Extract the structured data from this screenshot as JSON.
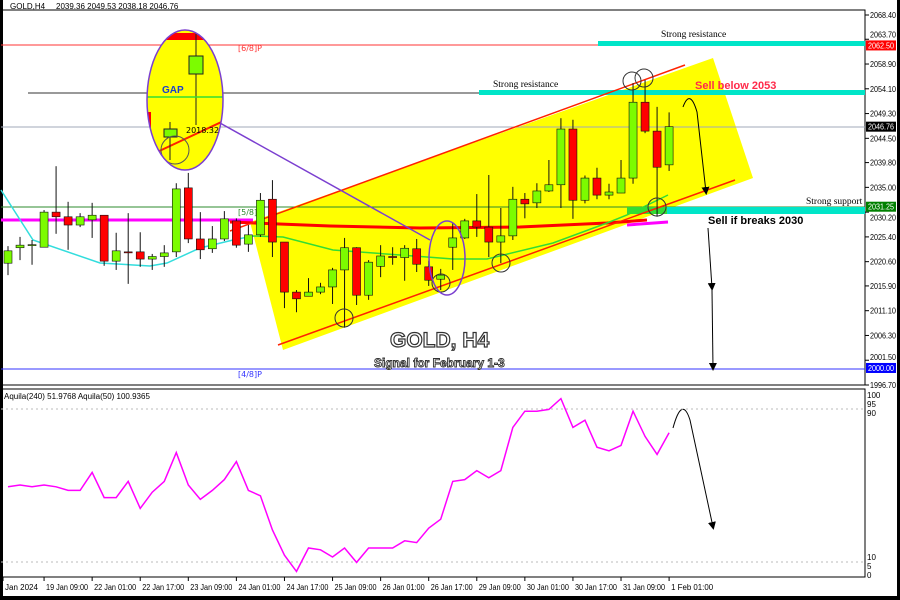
{
  "header": {
    "symbol": "GOLD,H4",
    "ohlc": "2039.36 2049.53 2038.18 2046.76"
  },
  "indicator": {
    "label": "Aquila(240) 51.9768  Aquila(50) 100.9365"
  },
  "annotations": {
    "strong_resistance_top": "Strong resistance",
    "strong_resistance_mid": "Strong resistance",
    "strong_support": "Strong support",
    "sell_below": "Sell below 2053",
    "sell_if_breaks": "Sell if breaks 2030",
    "title": "GOLD, H4",
    "subtitle": "Signal for February 1-3",
    "gap": "GAP",
    "gap_price": "2018.32",
    "level_6_8": "[6/8]P",
    "level_5_8": "[5/8]P",
    "level_4_8": "[4/8]P"
  },
  "colors": {
    "bull": "#7cfc00",
    "bear": "#ff0000",
    "channel": "#ffff00",
    "support_band": "#00e5c8",
    "oscillator": "#ff00ff",
    "sell_text": "#ff2a4a"
  },
  "chart_data": {
    "type": "candlestick",
    "ylim": [
      1996.7,
      2068.4
    ],
    "y_ticks": [
      "2068.40",
      "2063.70",
      "2058.90",
      "2054.10",
      "2049.30",
      "2044.50",
      "2039.80",
      "2035.00",
      "2030.20",
      "2025.40",
      "2020.60",
      "2015.90",
      "2011.10",
      "2006.30",
      "2001.50",
      "1996.70"
    ],
    "price_tags": [
      {
        "value": "2062.50",
        "color": "#ff0000"
      },
      {
        "value": "2046.76",
        "color": "#000000"
      },
      {
        "value": "2031.25",
        "color": "#008000"
      },
      {
        "value": "2000.00",
        "color": "#0000ff"
      }
    ],
    "x_ticks": [
      "Jan 2024",
      "19 Jan 09:00",
      "22 Jan 01:00",
      "22 Jan 17:00",
      "23 Jan 09:00",
      "24 Jan 01:00",
      "24 Jan 17:00",
      "25 Jan 09:00",
      "26 Jan 01:00",
      "26 Jan 17:00",
      "29 Jan 09:00",
      "30 Jan 01:00",
      "30 Jan 17:00",
      "31 Jan 09:00",
      "1 Feb 01:00"
    ],
    "ohlc": [
      [
        2020.3,
        2023.6,
        2018.0,
        2022.7
      ],
      [
        2023.3,
        2025.4,
        2020.9,
        2023.8
      ],
      [
        2023.8,
        2024.8,
        2020.0,
        2023.9
      ],
      [
        2023.4,
        2030.6,
        2023.4,
        2030.2
      ],
      [
        2030.2,
        2039.1,
        2026.0,
        2029.3
      ],
      [
        2029.3,
        2032.2,
        2022.9,
        2027.7
      ],
      [
        2027.7,
        2030.0,
        2027.3,
        2029.3
      ],
      [
        2028.7,
        2032.0,
        2025.2,
        2029.6
      ],
      [
        2029.6,
        2029.6,
        2019.8,
        2020.7
      ],
      [
        2020.7,
        2026.2,
        2019.0,
        2022.7
      ],
      [
        2022.5,
        2030.0,
        2016.3,
        2022.4
      ],
      [
        2022.5,
        2026.3,
        2019.6,
        2021.1
      ],
      [
        2021.1,
        2022.1,
        2019.0,
        2021.6
      ],
      [
        2021.6,
        2023.8,
        2019.6,
        2022.3
      ],
      [
        2022.5,
        2035.8,
        2021.5,
        2034.7
      ],
      [
        2034.9,
        2037.8,
        2024.2,
        2025.0
      ],
      [
        2025.0,
        2030.2,
        2021.1,
        2022.9
      ],
      [
        2023.1,
        2027.5,
        2022.3,
        2025.0
      ],
      [
        2025.0,
        2030.4,
        2024.6,
        2028.9
      ],
      [
        2028.5,
        2029.0,
        2023.3,
        2023.8
      ],
      [
        2024.0,
        2027.7,
        2022.5,
        2025.8
      ],
      [
        2025.8,
        2033.9,
        2025.4,
        2032.5
      ],
      [
        2032.7,
        2036.4,
        2021.5,
        2024.4
      ],
      [
        2024.4,
        2024.4,
        2011.6,
        2014.7
      ],
      [
        2014.7,
        2015.1,
        2010.8,
        2013.4
      ],
      [
        2013.9,
        2017.4,
        2013.9,
        2014.7
      ],
      [
        2014.7,
        2016.5,
        2014.3,
        2015.7
      ],
      [
        2015.7,
        2019.4,
        2012.4,
        2019.0
      ],
      [
        2019.0,
        2025.2,
        2007.8,
        2023.3
      ],
      [
        2023.3,
        2023.4,
        2012.2,
        2014.1
      ],
      [
        2014.1,
        2020.9,
        2013.2,
        2020.5
      ],
      [
        2019.7,
        2023.8,
        2017.6,
        2021.7
      ],
      [
        2021.6,
        2023.4,
        2020.0,
        2021.4
      ],
      [
        2021.4,
        2023.8,
        2016.9,
        2023.2
      ],
      [
        2023.1,
        2025.0,
        2018.6,
        2020.1
      ],
      [
        2019.6,
        2020.8,
        2015.9,
        2017.0
      ],
      [
        2017.2,
        2019.2,
        2015.1,
        2018.0
      ],
      [
        2023.4,
        2028.1,
        2019.0,
        2025.2
      ],
      [
        2025.2,
        2028.9,
        2025.0,
        2028.5
      ],
      [
        2028.5,
        2033.7,
        2025.4,
        2027.3
      ],
      [
        2027.3,
        2037.4,
        2021.5,
        2024.4
      ],
      [
        2024.4,
        2031.0,
        2020.3,
        2025.6
      ],
      [
        2025.6,
        2035.1,
        2024.8,
        2032.7
      ],
      [
        2032.7,
        2033.9,
        2029.0,
        2031.8
      ],
      [
        2032.0,
        2035.8,
        2031.0,
        2034.3
      ],
      [
        2034.3,
        2040.3,
        2034.1,
        2035.5
      ],
      [
        2035.5,
        2048.4,
        2031.0,
        2046.3
      ],
      [
        2046.3,
        2048.1,
        2028.9,
        2032.5
      ],
      [
        2032.5,
        2037.3,
        2031.9,
        2036.8
      ],
      [
        2036.8,
        2038.8,
        2032.7,
        2033.5
      ],
      [
        2033.5,
        2035.7,
        2032.7,
        2034.1
      ],
      [
        2033.9,
        2040.3,
        2033.9,
        2036.8
      ],
      [
        2036.8,
        2055.2,
        2035.7,
        2051.5
      ],
      [
        2051.5,
        2055.8,
        2045.5,
        2045.9
      ],
      [
        2045.9,
        2050.6,
        2029.3,
        2038.9
      ],
      [
        2039.36,
        2049.53,
        2038.18,
        2046.76
      ]
    ],
    "levels": [
      {
        "price": 2062.5,
        "label": "[6/8]P"
      },
      {
        "price": 2053.9,
        "label": "Strong resistance"
      },
      {
        "price": 2046.76,
        "label": "current"
      },
      {
        "price": 2031.25,
        "label": "[5/8]P"
      },
      {
        "price": 2000.0,
        "label": "[4/8]P"
      }
    ],
    "oscillator": {
      "ylim": [
        0,
        100
      ],
      "y_ticks": [
        "100",
        "95",
        "90",
        "10",
        "5",
        "0"
      ],
      "values": [
        49,
        50,
        49,
        50,
        49,
        47,
        47,
        57,
        43,
        43,
        52,
        37,
        46,
        52,
        68,
        50,
        42,
        47,
        53,
        63,
        47,
        44,
        25,
        11,
        2,
        15,
        14,
        10,
        15,
        7,
        15,
        15,
        15,
        19,
        18,
        26,
        31,
        52,
        53,
        58,
        54,
        58,
        82,
        91,
        91,
        92,
        98,
        82,
        86,
        71,
        69,
        72,
        91,
        77,
        67,
        79
      ]
    }
  }
}
